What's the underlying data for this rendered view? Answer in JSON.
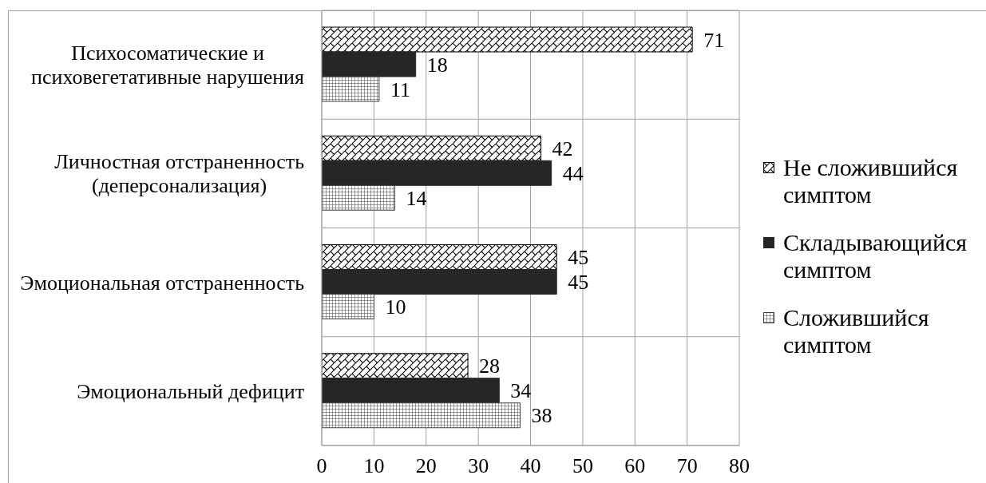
{
  "chart_data": {
    "type": "bar",
    "orientation": "horizontal",
    "categories": [
      "Психосоматические и психовегетативные нарушения",
      "Личностная отстраненность (деперсонализация)",
      "Эмоциональная отстраненность",
      "Эмоциональный дефицит"
    ],
    "series": [
      {
        "name": "Не сложившийся симптом",
        "color": "#000000",
        "values": [
          71,
          42,
          45,
          28
        ]
      },
      {
        "name": "Складывающийся симптом",
        "color": "#262626",
        "values": [
          18,
          44,
          45,
          34
        ]
      },
      {
        "name": "Сложившийся симптом",
        "color": "#404040",
        "values": [
          11,
          14,
          10,
          38
        ]
      }
    ],
    "xlim": [
      0,
      80
    ],
    "xticks": [
      0,
      10,
      20,
      30,
      40,
      50,
      60,
      70,
      80
    ],
    "grid": true,
    "legend": "right",
    "data_labels": true
  }
}
